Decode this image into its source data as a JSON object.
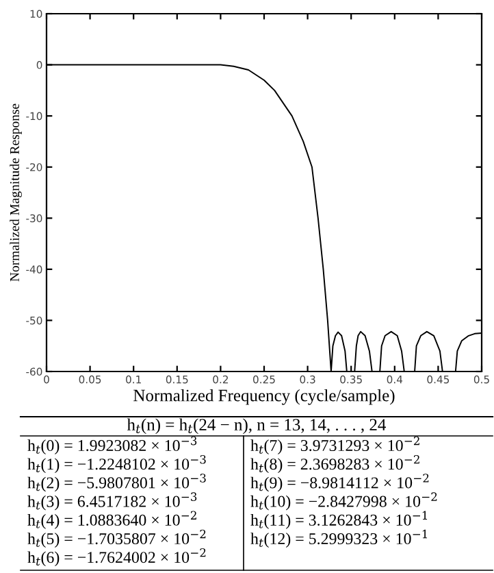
{
  "chart_data": {
    "type": "line",
    "xlabel": "Normalized Frequency (cycle/sample)",
    "ylabel": "Normalized Magnitude Response",
    "xlim": [
      0,
      0.5
    ],
    "ylim": [
      -60,
      10
    ],
    "xticks": [
      0,
      0.05,
      0.1,
      0.15,
      0.2,
      0.25,
      0.3,
      0.35,
      0.4,
      0.45,
      0.5
    ],
    "yticks": [
      -60,
      -50,
      -40,
      -30,
      -20,
      -10,
      0,
      10
    ],
    "grid": false,
    "series": [
      {
        "color": "#000000",
        "x": [
          0,
          0.1,
          0.2,
          0.215,
          0.232,
          0.25,
          0.262,
          0.282,
          0.295,
          0.305,
          0.312,
          0.318,
          0.323,
          0.327,
          0.329,
          0.332,
          0.335,
          0.339,
          0.343,
          0.345,
          0.354,
          0.356,
          0.358,
          0.361,
          0.366,
          0.371,
          0.374,
          0.383,
          0.385,
          0.389,
          0.396,
          0.403,
          0.408,
          0.411,
          0.423,
          0.425,
          0.43,
          0.437,
          0.445,
          0.452,
          0.455,
          0.47,
          0.472,
          0.477,
          0.485,
          0.492,
          0.5
        ],
        "values": [
          0,
          0,
          0,
          -0.3,
          -1,
          -3,
          -5,
          -10,
          -15,
          -20,
          -30,
          -40,
          -50,
          -60,
          -55,
          -53,
          -52.3,
          -53,
          -56,
          -60,
          -60,
          -55,
          -53,
          -52.2,
          -53,
          -56,
          -60,
          -60,
          -55,
          -53,
          -52.2,
          -53,
          -56,
          -60,
          -60,
          -55,
          -53,
          -52.2,
          -53,
          -56,
          -60,
          -60,
          -56,
          -54,
          -53,
          -52.6,
          -52.5
        ]
      }
    ],
    "annotations": [
      "h$_{t}$(n) = h$_{t}$(24 − n), n = 13, 14, . . . , 24",
      "h$_{t}$(0) = 1.9923082 × 10$^{−3}$",
      "h$_{t}$(1) = −1.2248102 × 10$^{−3}$",
      "h$_{t}$(2) = −5.9807801 × 10$^{−3}$",
      "h$_{t}$(3) = 6.4517182 × 10$^{−3}$",
      "h$_{t}$(4) = 1.0883640 × 10$^{−2}$",
      "h$_{t}$(5) = −1.7035807 × 10$^{−2}$",
      "h$_{t}$(6) = −1.7624002 × 10$^{−2}$",
      "h$_{t}$(7) = 3.9731293 × 10$^{−2}$",
      "h$_{t}$(8) = 2.3698283 × 10$^{−2}$",
      "h$_{t}$(9) = −8.9814112 × 10$^{−2}$",
      "h$_{t}$(10) = −2.8427998 × 10$^{−2}$",
      "h$_{t}$(11) = 3.1262843 × 10$^{−1}$",
      "h$_{t}$(12) = 5.2999323 × 10$^{−1}$"
    ]
  }
}
